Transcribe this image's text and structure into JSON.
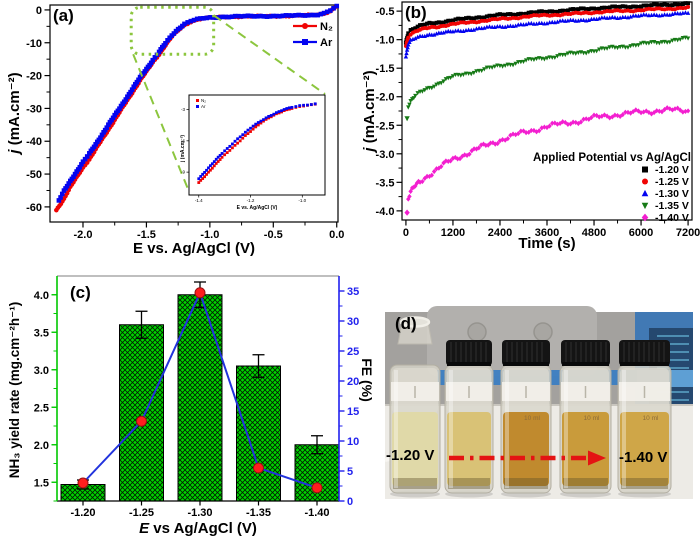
{
  "chart_data": [
    {
      "id": "a",
      "type": "line",
      "panel_label": "(a)",
      "xlabel": "E vs. Ag/AgCl (V)",
      "ylabel_var": "j",
      "ylabel_rest": " (mA.cm⁻²)",
      "xlim": [
        -2.26,
        0.01
      ],
      "ylim": [
        -64.6,
        1.5
      ],
      "x_ticks": [
        -2.0,
        -1.5,
        -1.0,
        -0.5,
        0.0
      ],
      "x_tick_labels": [
        "-2.0",
        "-1.5",
        "-1.0",
        "-0.5",
        "0.0"
      ],
      "y_ticks": [
        0,
        -10,
        -20,
        -30,
        -40,
        -50,
        -60
      ],
      "grid": false,
      "legend_position": "upper right",
      "series": [
        {
          "name": "N₂",
          "color": "#f00404",
          "marker": "circle",
          "points": [
            [
              -2.21,
              -61
            ],
            [
              -2.15,
              -57.5
            ],
            [
              -2.1,
              -54
            ],
            [
              -2.05,
              -51
            ],
            [
              -2.0,
              -48
            ],
            [
              -1.95,
              -45.5
            ],
            [
              -1.9,
              -42.5
            ],
            [
              -1.85,
              -39.5
            ],
            [
              -1.8,
              -36.5
            ],
            [
              -1.75,
              -33.5
            ],
            [
              -1.7,
              -30.5
            ],
            [
              -1.65,
              -27.5
            ],
            [
              -1.6,
              -24.5
            ],
            [
              -1.55,
              -21.5
            ],
            [
              -1.5,
              -18.8
            ],
            [
              -1.45,
              -16
            ],
            [
              -1.4,
              -13.5
            ],
            [
              -1.35,
              -10.8
            ],
            [
              -1.3,
              -8.2
            ],
            [
              -1.25,
              -6.2
            ],
            [
              -1.2,
              -4.6
            ],
            [
              -1.15,
              -3.6
            ],
            [
              -1.1,
              -3.0
            ],
            [
              -1.05,
              -2.6
            ],
            [
              -1.0,
              -2.4
            ],
            [
              -0.9,
              -2.15
            ],
            [
              -0.8,
              -2.05
            ],
            [
              -0.7,
              -2.0
            ],
            [
              -0.6,
              -1.95
            ],
            [
              -0.5,
              -1.9
            ],
            [
              -0.4,
              -1.85
            ],
            [
              -0.3,
              -1.75
            ],
            [
              -0.2,
              -1.6
            ],
            [
              -0.15,
              -1.45
            ],
            [
              -0.1,
              -1.1
            ],
            [
              -0.05,
              -0.3
            ],
            [
              0.0,
              1.2
            ]
          ]
        },
        {
          "name": "Ar",
          "color": "#0404f0",
          "marker": "square",
          "points": [
            [
              -2.19,
              -58
            ],
            [
              -2.15,
              -55.2
            ],
            [
              -2.1,
              -52.2
            ],
            [
              -2.05,
              -49.2
            ],
            [
              -2.0,
              -46.3
            ],
            [
              -1.95,
              -43.8
            ],
            [
              -1.9,
              -41
            ],
            [
              -1.85,
              -38
            ],
            [
              -1.8,
              -35
            ],
            [
              -1.75,
              -32.2
            ],
            [
              -1.7,
              -29.3
            ],
            [
              -1.65,
              -26.4
            ],
            [
              -1.6,
              -23.5
            ],
            [
              -1.55,
              -20.6
            ],
            [
              -1.5,
              -18
            ],
            [
              -1.45,
              -15.3
            ],
            [
              -1.4,
              -12.8
            ],
            [
              -1.35,
              -10.2
            ],
            [
              -1.3,
              -7.7
            ],
            [
              -1.25,
              -5.8
            ],
            [
              -1.2,
              -4.3
            ],
            [
              -1.15,
              -3.4
            ],
            [
              -1.1,
              -2.9
            ],
            [
              -1.05,
              -2.55
            ],
            [
              -1.0,
              -2.35
            ],
            [
              -0.9,
              -2.1
            ],
            [
              -0.8,
              -2.0
            ],
            [
              -0.7,
              -1.95
            ],
            [
              -0.6,
              -1.9
            ],
            [
              -0.5,
              -1.85
            ],
            [
              -0.4,
              -1.8
            ],
            [
              -0.3,
              -1.7
            ],
            [
              -0.2,
              -1.55
            ],
            [
              -0.15,
              -1.4
            ],
            [
              -0.1,
              -1.0
            ],
            [
              -0.05,
              -0.15
            ],
            [
              0.0,
              1.0
            ]
          ]
        }
      ],
      "zoom_box": {
        "color": "#8cc63e",
        "x0": -1.62,
        "x1": -0.97,
        "y0": 0.8,
        "y1": -13.5
      },
      "inset": {
        "xlabel": "E vs. Ag/AgCl (V)",
        "ylabel": "j (mA.cm⁻²)",
        "xlim": [
          -1.43,
          -0.92
        ],
        "ylim": [
          -11,
          -1.8
        ],
        "x_tick_labels": [
          "-1.4",
          "-1.2",
          "-1.0"
        ],
        "x_ticks": [
          -1.4,
          -1.2,
          -1.0
        ],
        "y_ticks": [
          -3,
          -6,
          -9
        ],
        "series": [
          {
            "name": "N₂",
            "color": "#f00404",
            "points": [
              [
                -1.4,
                -10
              ],
              [
                -1.37,
                -9.2
              ],
              [
                -1.34,
                -8.4
              ],
              [
                -1.31,
                -7.6
              ],
              [
                -1.28,
                -6.9
              ],
              [
                -1.25,
                -6.2
              ],
              [
                -1.22,
                -5.5
              ],
              [
                -1.19,
                -4.9
              ],
              [
                -1.16,
                -4.3
              ],
              [
                -1.13,
                -3.8
              ],
              [
                -1.1,
                -3.4
              ],
              [
                -1.07,
                -3.1
              ],
              [
                -1.04,
                -2.9
              ],
              [
                -1.01,
                -2.75
              ],
              [
                -0.98,
                -2.6
              ],
              [
                -0.95,
                -2.5
              ]
            ]
          },
          {
            "name": "Ar",
            "color": "#0404f0",
            "points": [
              [
                -1.4,
                -9.6
              ],
              [
                -1.37,
                -8.8
              ],
              [
                -1.34,
                -8.0
              ],
              [
                -1.31,
                -7.2
              ],
              [
                -1.28,
                -6.5
              ],
              [
                -1.25,
                -5.8
              ],
              [
                -1.22,
                -5.2
              ],
              [
                -1.19,
                -4.6
              ],
              [
                -1.16,
                -4.1
              ],
              [
                -1.13,
                -3.65
              ],
              [
                -1.1,
                -3.3
              ],
              [
                -1.07,
                -3.0
              ],
              [
                -1.04,
                -2.8
              ],
              [
                -1.01,
                -2.65
              ],
              [
                -0.98,
                -2.55
              ],
              [
                -0.95,
                -2.45
              ]
            ]
          }
        ]
      }
    },
    {
      "id": "b",
      "type": "line",
      "panel_label": "(b)",
      "xlabel": "Time (s)",
      "ylabel_var": "j",
      "ylabel_rest": " (mA.cm⁻²)",
      "xlim": [
        0,
        7200
      ],
      "ylim": [
        -4.16,
        -0.34
      ],
      "x_ticks": [
        0,
        1200,
        2400,
        3600,
        4800,
        6000,
        7200
      ],
      "y_ticks": [
        -0.5,
        -1.0,
        -1.5,
        -2.0,
        -2.5,
        -3.0,
        -3.5,
        -4.0
      ],
      "y_tick_labels": [
        "-0.5",
        "-1.0",
        "-1.5",
        "-2.0",
        "-2.5",
        "-3.0",
        "-3.5",
        "-4.0"
      ],
      "grid": false,
      "legend_title": "Applied Potential vs Ag/AgCl",
      "t": [
        0,
        60,
        120,
        240,
        360,
        480,
        600,
        900,
        1200,
        1800,
        2400,
        3000,
        3600,
        4200,
        4800,
        5400,
        6000,
        6600,
        7200
      ],
      "series": [
        {
          "name": "-1.20 V",
          "color": "#000000",
          "marker": "square",
          "noise": 0.018,
          "detached": false,
          "j": [
            -1.05,
            -0.88,
            -0.83,
            -0.79,
            -0.76,
            -0.74,
            -0.72,
            -0.69,
            -0.66,
            -0.61,
            -0.57,
            -0.54,
            -0.51,
            -0.48,
            -0.45,
            -0.43,
            -0.41,
            -0.39,
            -0.37
          ]
        },
        {
          "name": "-1.25 V",
          "color": "#f00404",
          "marker": "circle",
          "noise": 0.018,
          "detached": false,
          "j": [
            -1.1,
            -0.95,
            -0.9,
            -0.86,
            -0.83,
            -0.81,
            -0.79,
            -0.76,
            -0.73,
            -0.68,
            -0.64,
            -0.6,
            -0.57,
            -0.55,
            -0.52,
            -0.5,
            -0.48,
            -0.46,
            -0.44
          ]
        },
        {
          "name": "-1.30 V",
          "color": "#0404f0",
          "marker": "tri-up",
          "noise": 0.018,
          "detached": false,
          "j": [
            -1.28,
            -1.08,
            -1.02,
            -0.98,
            -0.95,
            -0.93,
            -0.91,
            -0.88,
            -0.86,
            -0.81,
            -0.77,
            -0.74,
            -0.7,
            -0.67,
            -0.64,
            -0.61,
            -0.58,
            -0.56,
            -0.54
          ]
        },
        {
          "name": "-1.35 V",
          "color": "#167a16",
          "marker": "tri-down",
          "noise": 0.028,
          "detached": true,
          "j": [
            -2.38,
            -2.16,
            -2.08,
            -1.99,
            -1.93,
            -1.88,
            -1.84,
            -1.74,
            -1.65,
            -1.55,
            -1.46,
            -1.38,
            -1.31,
            -1.25,
            -1.19,
            -1.13,
            -1.08,
            -1.03,
            -0.98
          ]
        },
        {
          "name": "-1.40 V",
          "color": "#f31fd0",
          "marker": "diamond",
          "noise": 0.05,
          "detached": true,
          "j": [
            -4.03,
            -3.78,
            -3.68,
            -3.57,
            -3.49,
            -3.42,
            -3.36,
            -3.22,
            -3.1,
            -2.92,
            -2.76,
            -2.63,
            -2.52,
            -2.45,
            -2.37,
            -2.31,
            -2.27,
            -2.23,
            -2.25
          ]
        }
      ]
    },
    {
      "id": "c",
      "type": "bar+line",
      "panel_label": "(c)",
      "xlabel_var": "E",
      "xlabel_rest": " vs Ag/AgCl (V)",
      "ylabel_left": "NH₃ yield rate (mg.cm⁻²h⁻¹)",
      "ylabel_right": "FE (%)",
      "categories": [
        "-1.20",
        "-1.25",
        "-1.30",
        "-1.35",
        "-1.40"
      ],
      "bar_values": [
        1.47,
        3.6,
        4.0,
        3.05,
        2.0
      ],
      "bar_errors": [
        0.06,
        0.18,
        0.17,
        0.15,
        0.12
      ],
      "fe_values": [
        3.0,
        13.3,
        34.7,
        5.5,
        2.2
      ],
      "left_ticks": [
        1.5,
        2.0,
        2.5,
        3.0,
        3.5,
        4.0
      ],
      "left_tick_labels": [
        "1.5",
        "2.0",
        "2.5",
        "3.0",
        "3.5",
        "4.0"
      ],
      "left_ylim": [
        1.25,
        4.25
      ],
      "right_ticks": [
        0,
        5,
        10,
        15,
        20,
        25,
        30,
        35
      ],
      "right_ylim": [
        0,
        37.5
      ],
      "bar_color": "#00d400",
      "bar_hatch": "black cross-hatch",
      "left_axis_color": "#00c800",
      "right_axis_color": "#2222ee",
      "fe_line_color": "#2233dd",
      "fe_marker_color": "#ff1e1e",
      "grid": false
    }
  ],
  "photo": {
    "panel_label": "(d)",
    "left_label": "-1.20 V",
    "right_label": "-1.40 V",
    "volume_label": "10 ml",
    "arrow_color": "#e41313",
    "vial_count": 5,
    "vials": [
      {
        "x": 5,
        "w": 50,
        "cap": false,
        "liquid": "#e0d9a8",
        "show_volume": false
      },
      {
        "x": 60,
        "w": 48,
        "cap": true,
        "liquid": "#d9c276",
        "show_volume": false
      },
      {
        "x": 116,
        "w": 50,
        "cap": true,
        "liquid": "#c08a2e",
        "show_volume": true
      },
      {
        "x": 175,
        "w": 51,
        "cap": true,
        "liquid": "#c99b3b",
        "show_volume": true
      },
      {
        "x": 233,
        "w": 53,
        "cap": true,
        "liquid": "#cfa648",
        "show_volume": true
      }
    ]
  }
}
